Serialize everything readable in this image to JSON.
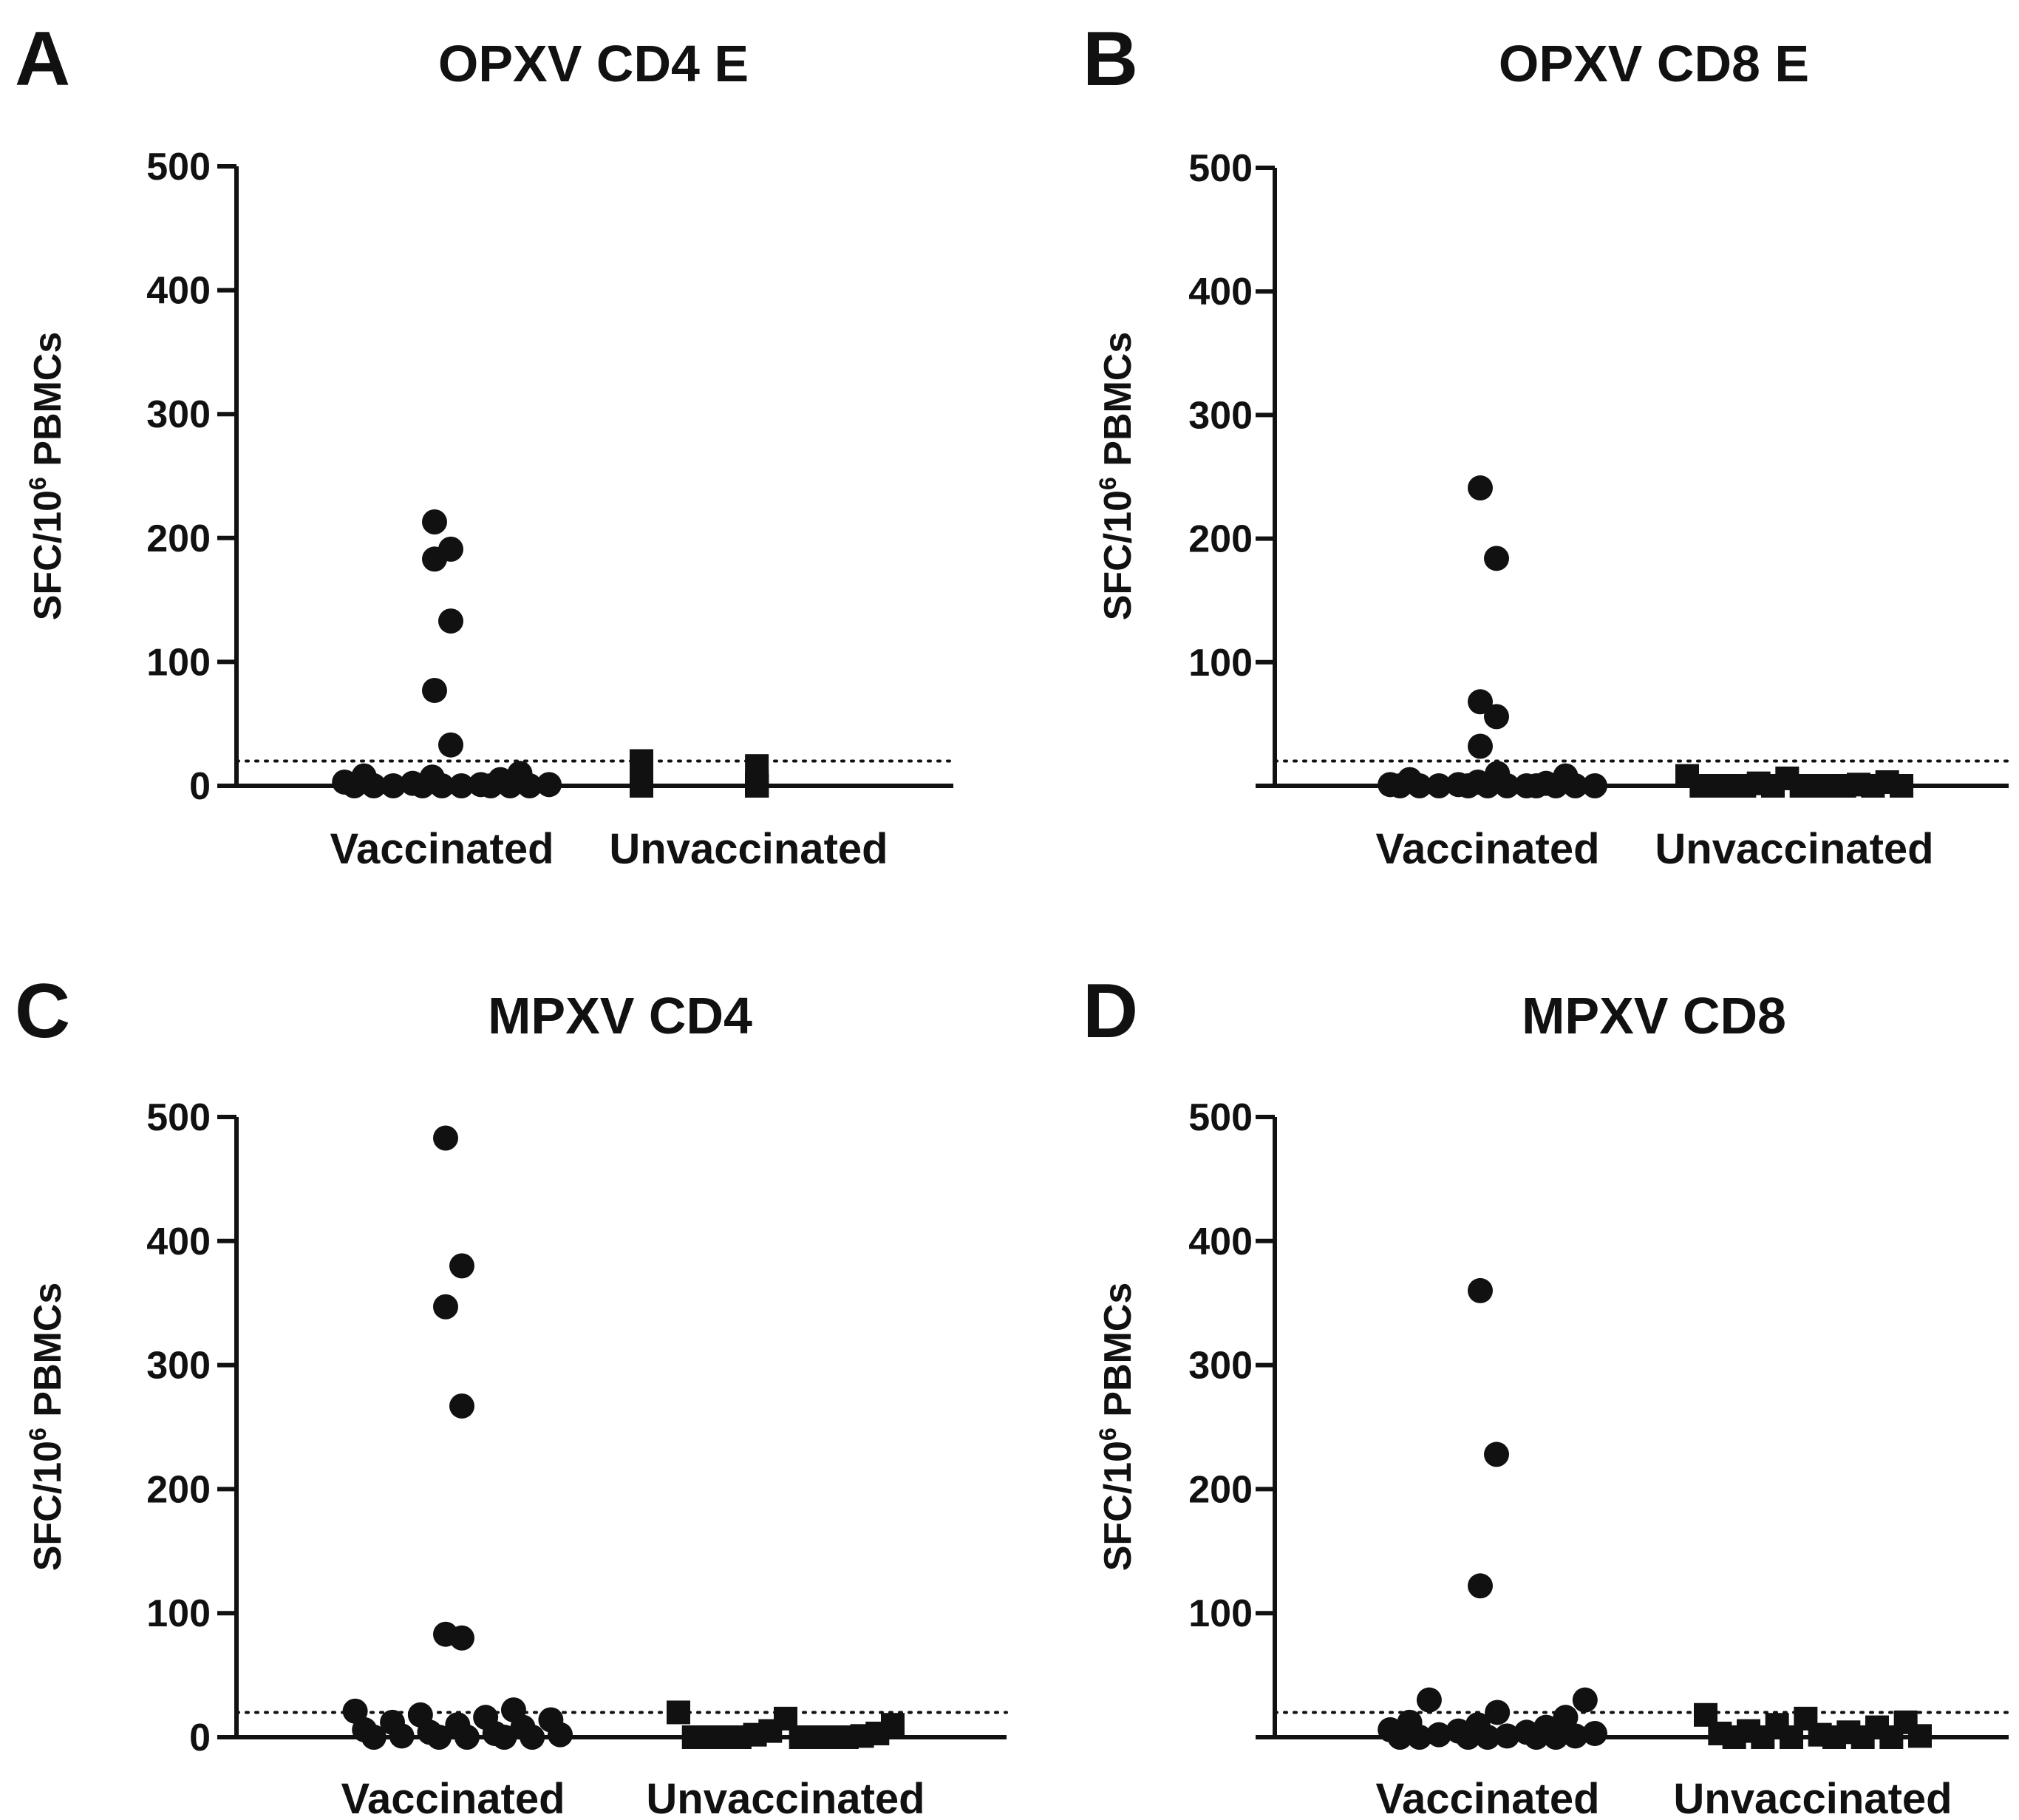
{
  "figure": {
    "ylabel_main": "SFC/10",
    "ylabel_sup": "6",
    "ylabel_tail": " PBMCs"
  },
  "chart_data": [
    {
      "type": "scatter",
      "panel_letter": "A",
      "title": "OPXV CD4 E",
      "ylabel": "SFC/10^6 PBMCs",
      "ylim": [
        0,
        500
      ],
      "yticks": [
        0,
        100,
        200,
        300,
        400,
        500
      ],
      "threshold": 20,
      "categories": [
        "Vaccinated",
        "Unvaccinated"
      ],
      "series": [
        {
          "name": "Vaccinated",
          "marker": "circle",
          "values": [
            213,
            183,
            191,
            133,
            77,
            33,
            10,
            8,
            7,
            5,
            3,
            2,
            1,
            1,
            0,
            0,
            0,
            0,
            0,
            0,
            0,
            0,
            0
          ]
        },
        {
          "name": "Unvaccinated",
          "marker": "square",
          "values": [
            20,
            16,
            5,
            3,
            2,
            0,
            0,
            0,
            0,
            0,
            0,
            0,
            0,
            0
          ]
        }
      ]
    },
    {
      "type": "scatter",
      "panel_letter": "B",
      "title": "OPXV CD8 E",
      "ylabel": "SFC/10^6 PBMCs",
      "ylim": [
        0,
        500
      ],
      "yticks": [
        100,
        200,
        300,
        400,
        500
      ],
      "threshold": 20,
      "categories": [
        "Vaccinated",
        "Unvaccinated"
      ],
      "series": [
        {
          "name": "Vaccinated",
          "marker": "circle",
          "values": [
            241,
            184,
            68,
            56,
            32,
            10,
            8,
            5,
            3,
            2,
            1,
            1,
            0,
            0,
            0,
            0,
            0,
            0,
            0,
            0,
            0,
            0,
            0
          ]
        },
        {
          "name": "Unvaccinated",
          "marker": "square",
          "values": [
            8,
            6,
            3,
            2,
            1,
            0,
            0,
            0,
            0,
            0,
            0,
            0,
            0,
            0,
            0,
            0
          ]
        }
      ]
    },
    {
      "type": "scatter",
      "panel_letter": "C",
      "title": "MPXV CD4",
      "ylabel": "SFC/10^6 PBMCs",
      "ylim": [
        0,
        500
      ],
      "yticks": [
        0,
        100,
        200,
        300,
        400,
        500
      ],
      "threshold": 20,
      "categories": [
        "Vaccinated",
        "Unvaccinated"
      ],
      "series": [
        {
          "name": "Vaccinated",
          "marker": "circle",
          "values": [
            483,
            380,
            347,
            267,
            83,
            80,
            22,
            21,
            18,
            16,
            14,
            12,
            10,
            8,
            6,
            4,
            3,
            2,
            1,
            0,
            0,
            0,
            0,
            0
          ]
        },
        {
          "name": "Unvaccinated",
          "marker": "square",
          "values": [
            20,
            15,
            10,
            5,
            3,
            2,
            1,
            0,
            0,
            0,
            0,
            0,
            0,
            0,
            0
          ]
        }
      ]
    },
    {
      "type": "scatter",
      "panel_letter": "D",
      "title": "MPXV CD8",
      "ylabel": "SFC/10^6 PBMCs",
      "ylim": [
        0,
        500
      ],
      "yticks": [
        100,
        200,
        300,
        400,
        500
      ],
      "threshold": 20,
      "categories": [
        "Vaccinated",
        "Unvaccinated"
      ],
      "series": [
        {
          "name": "Vaccinated",
          "marker": "circle",
          "values": [
            360,
            228,
            122,
            30,
            30,
            20,
            16,
            12,
            10,
            8,
            6,
            5,
            4,
            3,
            2,
            1,
            1,
            0,
            0,
            0,
            0,
            0,
            0
          ]
        },
        {
          "name": "Unvaccinated",
          "marker": "square",
          "values": [
            18,
            15,
            12,
            10,
            8,
            5,
            4,
            3,
            2,
            1,
            0,
            0,
            0,
            0,
            0,
            0
          ]
        }
      ]
    }
  ]
}
